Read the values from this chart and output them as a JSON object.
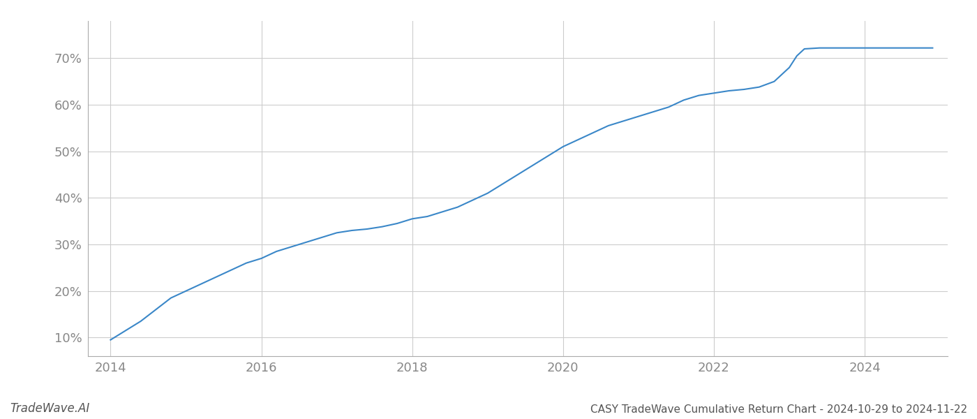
{
  "x_values": [
    2014.0,
    2014.2,
    2014.4,
    2014.6,
    2014.8,
    2015.0,
    2015.2,
    2015.4,
    2015.6,
    2015.8,
    2016.0,
    2016.2,
    2016.4,
    2016.6,
    2016.8,
    2017.0,
    2017.2,
    2017.4,
    2017.6,
    2017.8,
    2018.0,
    2018.2,
    2018.4,
    2018.6,
    2018.8,
    2019.0,
    2019.2,
    2019.4,
    2019.6,
    2019.8,
    2020.0,
    2020.2,
    2020.4,
    2020.6,
    2020.8,
    2021.0,
    2021.2,
    2021.4,
    2021.6,
    2021.8,
    2022.0,
    2022.2,
    2022.4,
    2022.6,
    2022.8,
    2023.0,
    2023.1,
    2023.2,
    2023.4,
    2023.6,
    2023.8,
    2024.0,
    2024.3,
    2024.6,
    2024.9
  ],
  "y_values": [
    9.5,
    11.5,
    13.5,
    16.0,
    18.5,
    20.0,
    21.5,
    23.0,
    24.5,
    26.0,
    27.0,
    28.5,
    29.5,
    30.5,
    31.5,
    32.5,
    33.0,
    33.3,
    33.8,
    34.5,
    35.5,
    36.0,
    37.0,
    38.0,
    39.5,
    41.0,
    43.0,
    45.0,
    47.0,
    49.0,
    51.0,
    52.5,
    54.0,
    55.5,
    56.5,
    57.5,
    58.5,
    59.5,
    61.0,
    62.0,
    62.5,
    63.0,
    63.3,
    63.8,
    65.0,
    68.0,
    70.5,
    72.0,
    72.2,
    72.2,
    72.2,
    72.2,
    72.2,
    72.2,
    72.2
  ],
  "line_color": "#3a87c8",
  "line_width": 1.5,
  "title": "CASY TradeWave Cumulative Return Chart - 2024-10-29 to 2024-11-22",
  "watermark": "TradeWave.AI",
  "x_ticks": [
    2014,
    2016,
    2018,
    2020,
    2022,
    2024
  ],
  "y_ticks": [
    10,
    20,
    30,
    40,
    50,
    60,
    70
  ],
  "xlim": [
    2013.7,
    2025.1
  ],
  "ylim": [
    6,
    78
  ],
  "bg_color": "#ffffff",
  "grid_color": "#cccccc",
  "tick_color": "#888888",
  "title_color": "#555555",
  "watermark_color": "#555555",
  "title_fontsize": 11,
  "watermark_fontsize": 12,
  "tick_fontsize": 13
}
